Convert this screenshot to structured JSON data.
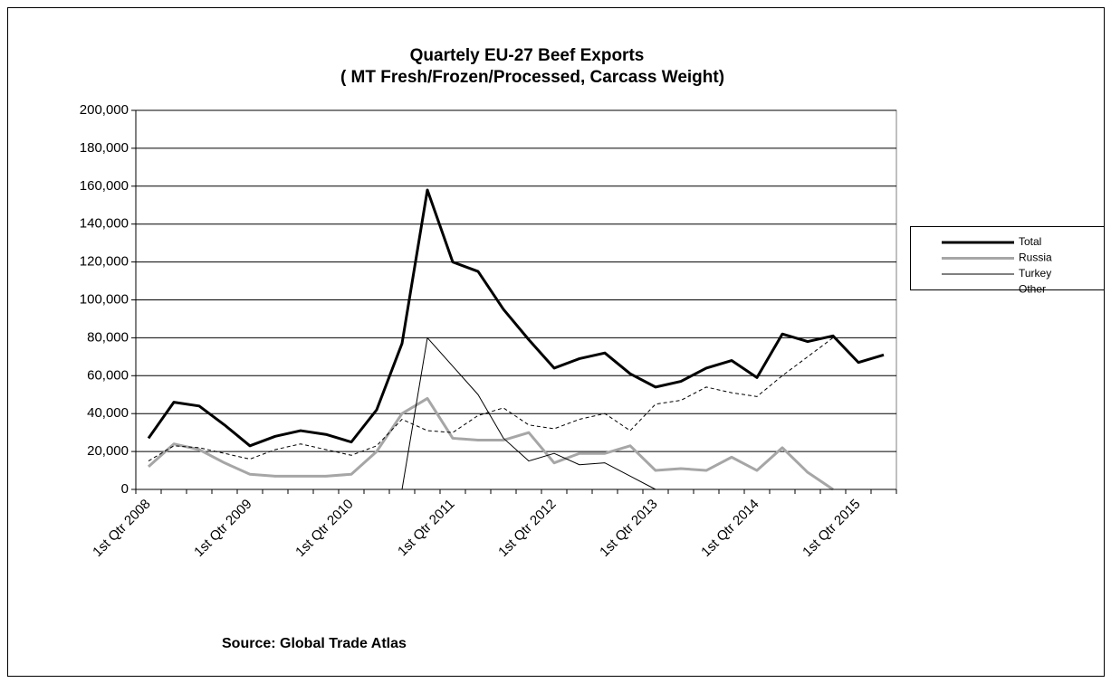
{
  "chart_data": {
    "type": "line",
    "title": "Quartely EU-27 Beef Exports",
    "subtitle": "( MT Fresh/Frozen/Processed, Carcass Weight)",
    "source": "Source: Global Trade Atlas",
    "categories": [
      "1st Qtr 2008",
      null,
      null,
      null,
      "1st Qtr 2009",
      null,
      null,
      null,
      "1st Qtr 2010",
      null,
      null,
      null,
      "1st Qtr 2011",
      null,
      null,
      null,
      "1st Qtr 2012",
      null,
      null,
      null,
      "1st Qtr 2013",
      null,
      null,
      null,
      "1st Qtr 2014",
      null,
      null,
      null,
      "1st Qtr 2015",
      null
    ],
    "series": [
      {
        "name": "Total",
        "color": "#000000",
        "width": 3,
        "dash": false,
        "values": [
          27000,
          46000,
          44000,
          34000,
          23000,
          28000,
          31000,
          29000,
          25000,
          42000,
          77000,
          158000,
          120000,
          115000,
          95000,
          79000,
          64000,
          69000,
          72000,
          61000,
          54000,
          57000,
          64000,
          68000,
          59000,
          82000,
          78000,
          81000,
          67000,
          71000
        ]
      },
      {
        "name": "Russia",
        "color": "#a6a6a6",
        "width": 3,
        "dash": false,
        "values": [
          12000,
          24000,
          21000,
          14000,
          8000,
          7000,
          7000,
          7000,
          8000,
          20000,
          40000,
          48000,
          27000,
          26000,
          26000,
          30000,
          14000,
          19000,
          19000,
          23000,
          10000,
          11000,
          10000,
          17000,
          10000,
          22000,
          9000,
          0,
          null,
          null
        ]
      },
      {
        "name": "Turkey",
        "color": "#000000",
        "width": 1,
        "dash": false,
        "values": [
          0,
          0,
          0,
          0,
          0,
          0,
          0,
          0,
          0,
          0,
          0,
          80000,
          65000,
          50000,
          27000,
          15000,
          19000,
          13000,
          14000,
          7000,
          0,
          0,
          0,
          0,
          0,
          0,
          0,
          0,
          0,
          0
        ]
      },
      {
        "name": "Other",
        "color": "#000000",
        "width": 1,
        "dash": true,
        "values": [
          15000,
          23000,
          22000,
          19000,
          16000,
          21000,
          24000,
          21000,
          18000,
          23000,
          37000,
          31000,
          30000,
          39000,
          43000,
          34000,
          32000,
          37000,
          40000,
          31000,
          45000,
          47000,
          54000,
          51000,
          49000,
          60000,
          70000,
          80000,
          null,
          null
        ]
      }
    ],
    "ylim": [
      0,
      200000
    ],
    "yticks": [
      0,
      {
        "value": 20000,
        "label": "20,000"
      },
      {
        "value": 40000,
        "label": "40,000"
      },
      {
        "value": 60000,
        "label": "60,000"
      },
      {
        "value": 80000,
        "label": "80,000"
      },
      {
        "value": 100000,
        "label": "100,000"
      },
      {
        "value": 120000,
        "label": "120,000"
      },
      {
        "value": 140000,
        "label": "140,000"
      },
      {
        "value": 160000,
        "label": "160,000"
      },
      {
        "value": 180000,
        "label": "180,000"
      },
      {
        "value": 200000,
        "label": "200,000"
      }
    ],
    "grid": true,
    "legend": "right"
  }
}
